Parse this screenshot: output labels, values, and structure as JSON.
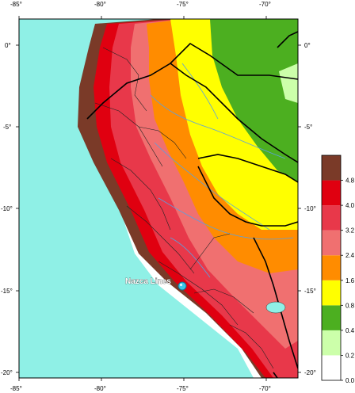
{
  "map": {
    "x_ticks": [
      "-85°",
      "-80°",
      "-75°",
      "-70°"
    ],
    "y_ticks_left": [
      "0°",
      "-5°",
      "-10°",
      "-15°",
      "-20°"
    ],
    "y_ticks_right": [
      "0°",
      "-5°",
      "-10°",
      "-15°",
      "-20°"
    ],
    "place_label": "Nazca Lines",
    "marker_icon": "location-dot-icon"
  },
  "legend": {
    "values": [
      "0.0",
      "0.2",
      "0.4",
      "0.8",
      "1.6",
      "2.4",
      "3.2",
      "4.0",
      "4.8"
    ],
    "colors": [
      "#ffffff",
      "#ccffaa",
      "#4caf20",
      "#ffff00",
      "#ff8c00",
      "#f07070",
      "#e8384a",
      "#e00010",
      "#7a3a28"
    ]
  },
  "colors": {
    "ocean": "#8ff0e6",
    "land_white": "#ffffff",
    "light_green": "#ccffaa",
    "green": "#4caf20",
    "yellow": "#ffff00",
    "orange": "#ff8c00",
    "pink": "#f07070",
    "red_pink": "#e8384a",
    "red": "#e00010",
    "brown": "#7a3a28",
    "river": "#5aa0e0"
  }
}
